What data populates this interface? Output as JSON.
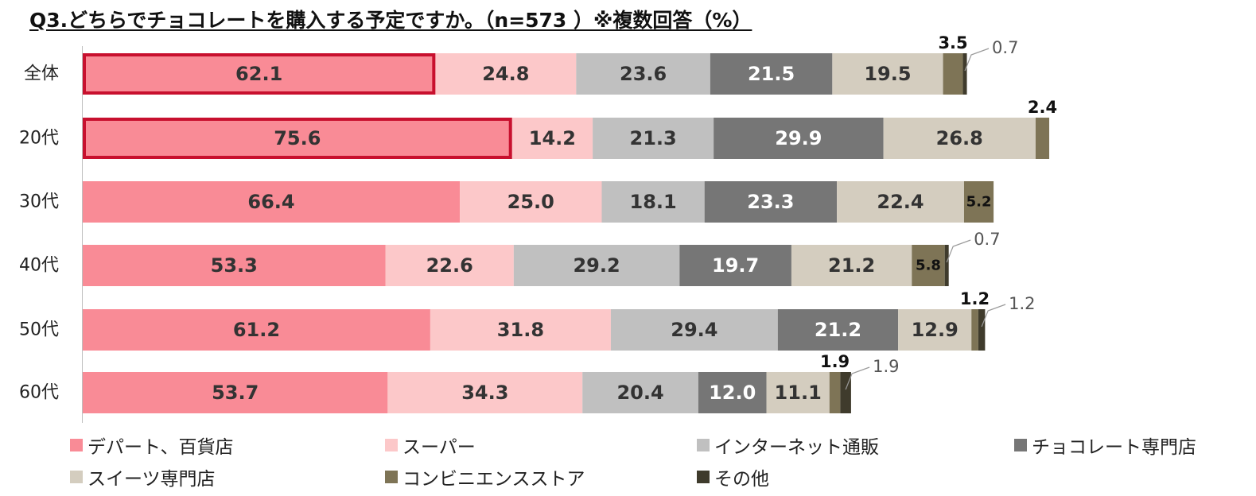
{
  "chart_data": {
    "type": "bar",
    "orientation": "horizontal",
    "stacked": true,
    "title": "Q3.どちらでチョコレートを購入する予定ですか。（n=573 ）※複数回答（%）",
    "categories": [
      "全体",
      "20代",
      "30代",
      "40代",
      "50代",
      "60代"
    ],
    "series": [
      {
        "name": "デパート、百貨店",
        "color": "#f98b96",
        "values": [
          62.1,
          75.6,
          66.4,
          53.3,
          61.2,
          53.7
        ]
      },
      {
        "name": "スーパー",
        "color": "#fcc8c9",
        "values": [
          24.8,
          14.2,
          25.0,
          22.6,
          31.8,
          34.3
        ]
      },
      {
        "name": "インターネット通販",
        "color": "#c0c0c0",
        "values": [
          23.6,
          21.3,
          18.1,
          29.2,
          29.4,
          20.4
        ]
      },
      {
        "name": "チョコレート専門店",
        "color": "#767676",
        "values": [
          21.5,
          29.9,
          23.3,
          19.7,
          21.2,
          12.0
        ]
      },
      {
        "name": "スイーツ専門店",
        "color": "#d4cdbf",
        "values": [
          19.5,
          26.8,
          22.4,
          21.2,
          12.9,
          11.1
        ]
      },
      {
        "name": "コンビニエンスストア",
        "color": "#7e7456",
        "values": [
          3.5,
          2.4,
          5.2,
          5.8,
          1.2,
          1.9
        ]
      },
      {
        "name": "その他",
        "color": "#3f3b2c",
        "values": [
          0.7,
          0.0,
          0.0,
          0.7,
          1.2,
          1.9
        ]
      }
    ],
    "value_labels": [
      [
        "62.1",
        "24.8",
        "23.6",
        "21.5",
        "19.5",
        "3.5",
        "0.7"
      ],
      [
        "75.6",
        "14.2",
        "21.3",
        "29.9",
        "26.8",
        "2.4",
        ""
      ],
      [
        "66.4",
        "25.0",
        "18.1",
        "23.3",
        "22.4",
        "5.2",
        ""
      ],
      [
        "53.3",
        "22.6",
        "29.2",
        "19.7",
        "21.2",
        "5.8",
        "0.7"
      ],
      [
        "61.2",
        "31.8",
        "29.4",
        "21.2",
        "12.9",
        "1.2",
        "1.2"
      ],
      [
        "53.7",
        "34.3",
        "20.4",
        "12.0",
        "11.1",
        "1.9",
        "1.9"
      ]
    ],
    "highlighted": [
      [
        0,
        0
      ],
      [
        1,
        0
      ]
    ],
    "highlight_color": "#c8102e",
    "legend_position": "bottom",
    "xlim": [
      0,
      184
    ]
  }
}
